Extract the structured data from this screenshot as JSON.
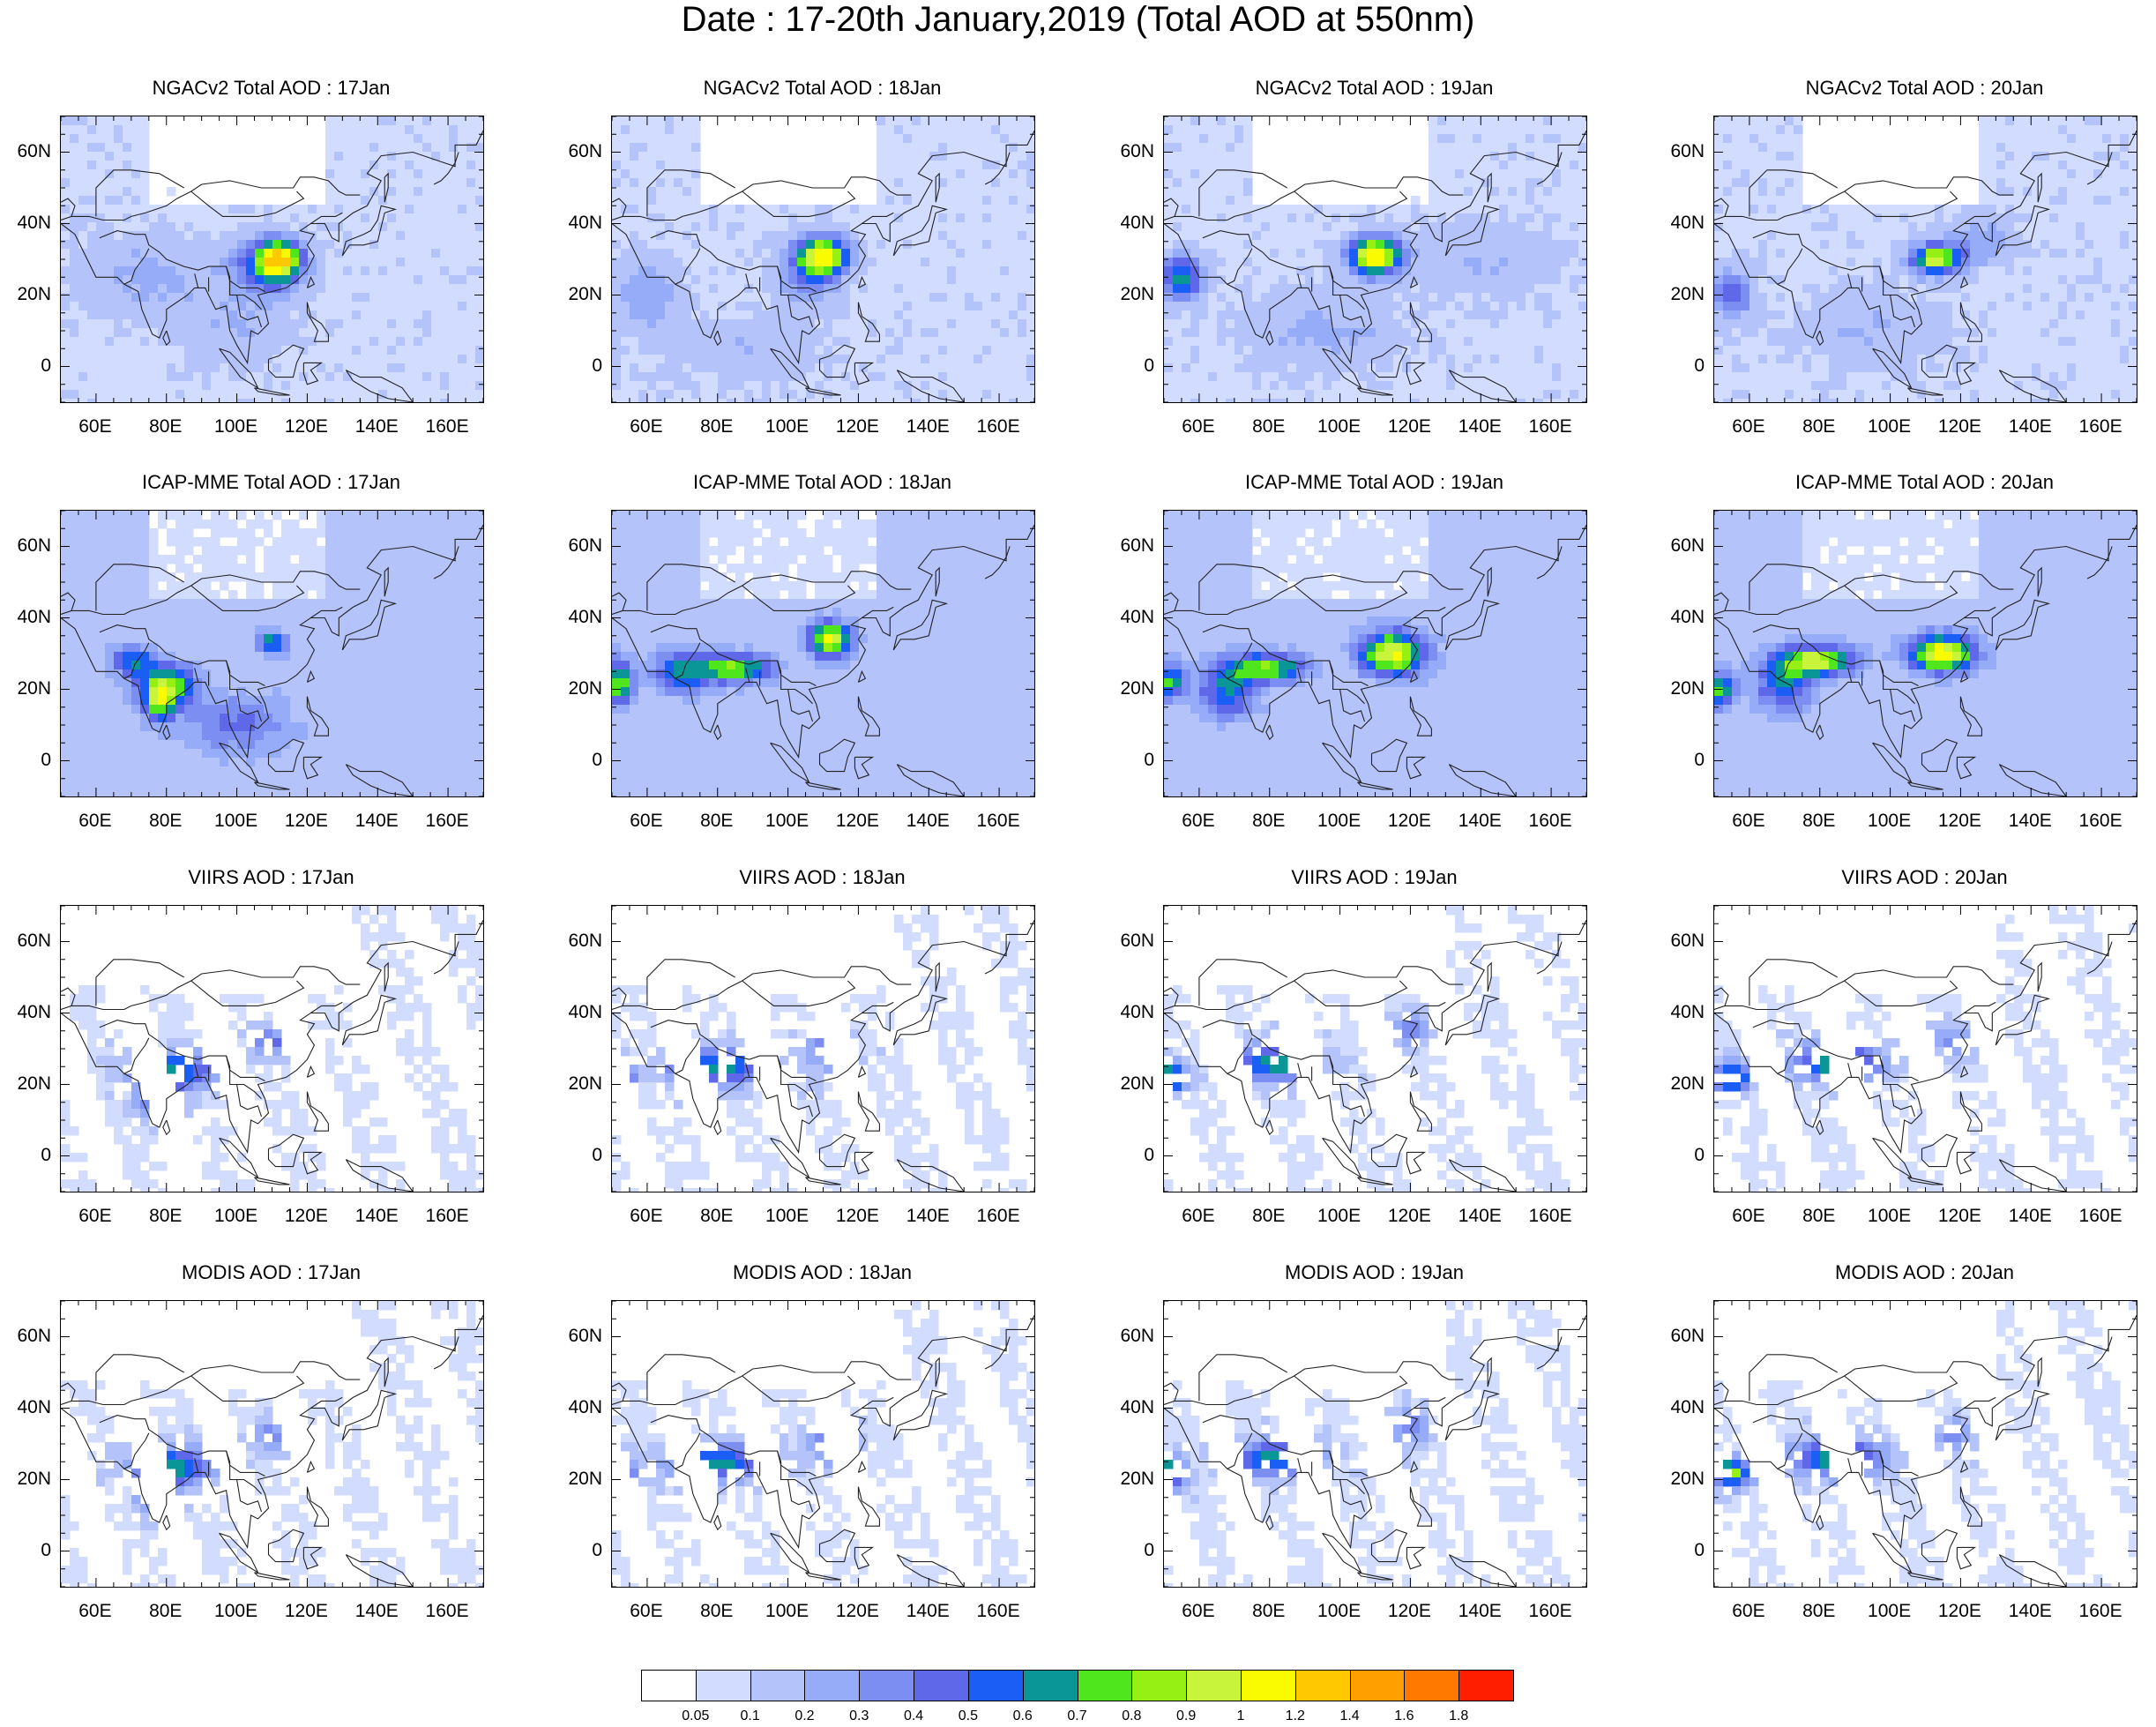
{
  "title": "Date : 17-20th January,2019 (Total AOD at 550nm)",
  "rows": [
    {
      "source": "NGACv2",
      "kind": "model",
      "titles": [
        "NGACv2 Total AOD : 17Jan",
        "NGACv2 Total AOD : 18Jan",
        "NGACv2 Total AOD : 19Jan",
        "NGACv2 Total AOD : 20Jan"
      ]
    },
    {
      "source": "ICAP-MME",
      "kind": "model",
      "titles": [
        "ICAP-MME Total AOD : 17Jan",
        "ICAP-MME Total AOD : 18Jan",
        "ICAP-MME Total AOD : 19Jan",
        "ICAP-MME Total AOD : 20Jan"
      ]
    },
    {
      "source": "VIIRS",
      "kind": "satellite",
      "titles": [
        "VIIRS AOD : 17Jan",
        "VIIRS AOD : 18Jan",
        "VIIRS AOD : 19Jan",
        "VIIRS AOD : 20Jan"
      ]
    },
    {
      "source": "MODIS",
      "kind": "satellite",
      "titles": [
        "MODIS AOD : 17Jan",
        "MODIS AOD : 18Jan",
        "MODIS AOD : 19Jan",
        "MODIS AOD : 20Jan"
      ]
    }
  ],
  "map_extent": {
    "lon": [
      50,
      170
    ],
    "lat": [
      -10,
      70
    ]
  },
  "lat_ticks": [
    "60N",
    "40N",
    "20N",
    "0"
  ],
  "lat_values": [
    60,
    40,
    20,
    0
  ],
  "lon_ticks": [
    "60E",
    "80E",
    "100E",
    "120E",
    "140E",
    "160E"
  ],
  "lon_values": [
    60,
    80,
    100,
    120,
    140,
    160
  ],
  "colorbar": {
    "colors": [
      "#ffffff",
      "#d2dcff",
      "#b4c3fa",
      "#96acf8",
      "#7d8ef2",
      "#5e68e8",
      "#1a5ef5",
      "#0a9696",
      "#50e61e",
      "#96f014",
      "#c8f53c",
      "#fafa00",
      "#ffc800",
      "#ffa000",
      "#ff7800",
      "#ff1e00"
    ],
    "labels": [
      "0.05",
      "0.1",
      "0.2",
      "0.3",
      "0.4",
      "0.5",
      "0.6",
      "0.7",
      "0.8",
      "0.9",
      "1",
      "1.2",
      "1.4",
      "1.6",
      "1.8"
    ]
  }
}
